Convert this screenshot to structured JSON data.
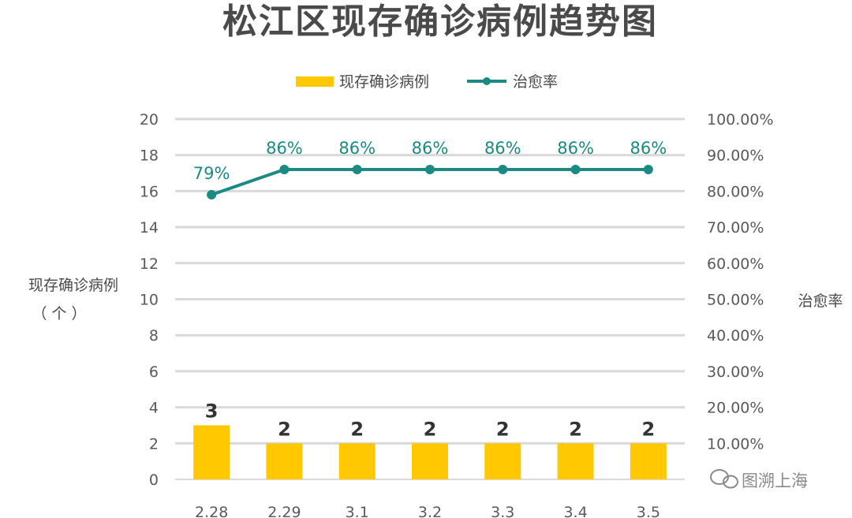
{
  "chart_data": {
    "type": "bar",
    "title": "松江区现存确诊病例趋势图",
    "categories": [
      "2.28",
      "2.29",
      "3.1",
      "3.2",
      "3.3",
      "3.4",
      "3.5"
    ],
    "series": [
      {
        "name": "现存确诊病例",
        "type": "bar",
        "axis": "left",
        "values": [
          3,
          2,
          2,
          2,
          2,
          2,
          2
        ],
        "labels": [
          "3",
          "2",
          "2",
          "2",
          "2",
          "2",
          "2"
        ],
        "color": "#FFC800"
      },
      {
        "name": "治愈率",
        "type": "line",
        "axis": "right",
        "values": [
          0.79,
          0.86,
          0.86,
          0.86,
          0.86,
          0.86,
          0.86
        ],
        "labels": [
          "79%",
          "86%",
          "86%",
          "86%",
          "86%",
          "86%",
          "86%"
        ],
        "color": "#1a8a82"
      }
    ],
    "y_left": {
      "label_line1": "现存确诊病例",
      "label_line2": "（ 个 ）",
      "ylim": [
        0,
        20
      ],
      "ticks": [
        "0",
        "2",
        "4",
        "6",
        "8",
        "10",
        "12",
        "14",
        "16",
        "18",
        "20"
      ]
    },
    "y_right": {
      "label": "治愈率",
      "ylim": [
        0,
        1
      ],
      "ticks": [
        "10.00%",
        "20.00%",
        "30.00%",
        "40.00%",
        "50.00%",
        "60.00%",
        "70.00%",
        "80.00%",
        "90.00%",
        "100.00%"
      ]
    },
    "grid": true,
    "legend_position": "top-center"
  },
  "watermark": "图溯上海",
  "colors": {
    "grid": "#d9d9d9",
    "bar": "#FFC800",
    "line": "#1a8a82",
    "text": "#4a4a4a"
  }
}
